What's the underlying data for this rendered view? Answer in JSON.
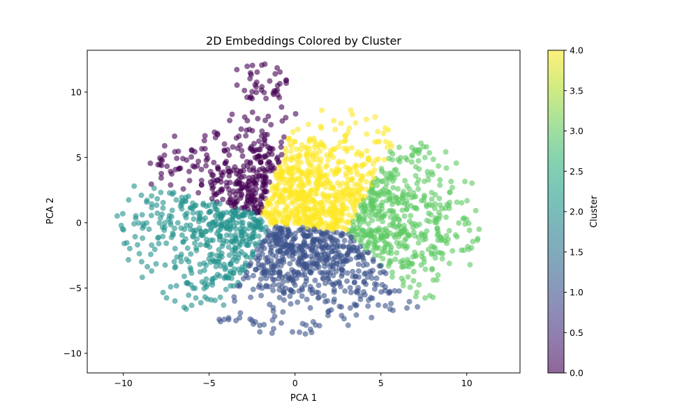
{
  "chart_data": {
    "type": "scatter",
    "title": "2D Embeddings Colored by Cluster",
    "xlabel": "PCA 1",
    "ylabel": "PCA 2",
    "xlim": [
      -12.1,
      13.1
    ],
    "ylim": [
      -11.5,
      13.2
    ],
    "xticks": [
      -10,
      -5,
      0,
      5,
      10
    ],
    "yticks": [
      -10,
      -5,
      0,
      5,
      10
    ],
    "grid": false,
    "marker_alpha": 0.6,
    "colorbar": {
      "label": "Cluster",
      "min": 0.0,
      "max": 4.0,
      "ticks": [
        "0.0",
        "0.5",
        "1.0",
        "1.5",
        "2.0",
        "2.5",
        "3.0",
        "3.5",
        "4.0"
      ],
      "colormap": "viridis"
    },
    "series": [
      {
        "cluster": 0,
        "color": "#440154",
        "center": [
          -3.5,
          4.5
        ],
        "spread": [
          2.2,
          1.2
        ],
        "approx_extent": {
          "x": [
            -9.5,
            2.2
          ],
          "y": [
            2.5,
            9.3
          ]
        }
      },
      {
        "cluster": 1,
        "color": "#3b528b",
        "center": [
          0.5,
          -4.0
        ],
        "spread": [
          2.0,
          1.8
        ],
        "approx_extent": {
          "x": [
            -4.0,
            5.0
          ],
          "y": [
            -10.5,
            -1.0
          ]
        }
      },
      {
        "cluster": 2,
        "color": "#21918c",
        "center": [
          -5.5,
          -1.5
        ],
        "spread": [
          1.8,
          2.2
        ],
        "approx_extent": {
          "x": [
            -10.8,
            -2.5
          ],
          "y": [
            -9.0,
            3.0
          ]
        }
      },
      {
        "cluster": 3,
        "color": "#5ec962",
        "center": [
          7.0,
          0.8
        ],
        "spread": [
          1.9,
          2.2
        ],
        "approx_extent": {
          "x": [
            3.5,
            12.0
          ],
          "y": [
            -5.5,
            7.0
          ]
        }
      },
      {
        "cluster": 4,
        "color": "#fde725",
        "center": [
          1.2,
          3.2
        ],
        "spread": [
          1.5,
          1.6
        ],
        "approx_extent": {
          "x": [
            -3.5,
            4.5
          ],
          "y": [
            1.0,
            8.0
          ]
        }
      }
    ],
    "outlier_group": {
      "cluster": 0,
      "approx_extent": {
        "x": [
          -3.5,
          -0.5
        ],
        "y": [
          9.5,
          12.2
        ]
      }
    }
  }
}
